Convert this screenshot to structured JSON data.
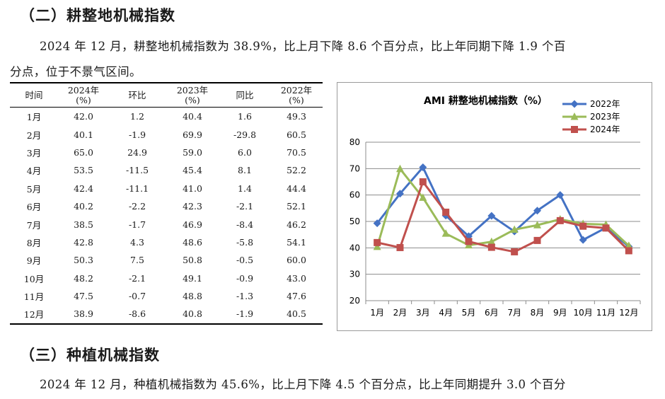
{
  "heading2": "（二）耕整地机械指数",
  "para1_line1": "2024 年 12 月，耕整地机械指数为 38.9%，比上月下降 8.6 个百分点，比上年同期下降 1.9 个百",
  "para1_line2": "分点，位于不景气区间。",
  "table": {
    "headers": [
      {
        "l1": "时间",
        "l2": ""
      },
      {
        "l1": "2024年",
        "l2": "(%)"
      },
      {
        "l1": "环比",
        "l2": ""
      },
      {
        "l1": "2023年",
        "l2": "(%)"
      },
      {
        "l1": "同比",
        "l2": ""
      },
      {
        "l1": "2022年",
        "l2": "(%)"
      }
    ],
    "rows": [
      [
        "1月",
        "42.0",
        "1.2",
        "40.4",
        "1.6",
        "49.3"
      ],
      [
        "2月",
        "40.1",
        "-1.9",
        "69.9",
        "-29.8",
        "60.5"
      ],
      [
        "3月",
        "65.0",
        "24.9",
        "59.0",
        "6.0",
        "70.5"
      ],
      [
        "4月",
        "53.5",
        "-11.5",
        "45.4",
        "8.1",
        "52.2"
      ],
      [
        "5月",
        "42.4",
        "-11.1",
        "41.0",
        "1.4",
        "44.4"
      ],
      [
        "6月",
        "40.2",
        "-2.2",
        "42.3",
        "-2.1",
        "52.1"
      ],
      [
        "7月",
        "38.5",
        "-1.7",
        "46.9",
        "-8.4",
        "46.2"
      ],
      [
        "8月",
        "42.8",
        "4.3",
        "48.6",
        "-5.8",
        "54.1"
      ],
      [
        "9月",
        "50.3",
        "7.5",
        "50.8",
        "-0.5",
        "60.0"
      ],
      [
        "10月",
        "48.2",
        "-2.1",
        "49.1",
        "-0.9",
        "43.0"
      ],
      [
        "11月",
        "47.5",
        "-0.7",
        "48.8",
        "-1.3",
        "47.6"
      ],
      [
        "12月",
        "38.9",
        "-8.6",
        "40.8",
        "-1.9",
        "40.5"
      ]
    ]
  },
  "chart_data": {
    "type": "line",
    "title": "AMI 耕整地机械指数（%）",
    "categories": [
      "1月",
      "2月",
      "3月",
      "4月",
      "5月",
      "6月",
      "7月",
      "8月",
      "9月",
      "10月",
      "11月",
      "12月"
    ],
    "ylim": [
      20,
      80
    ],
    "yticks": [
      "20",
      "30",
      "40",
      "50",
      "60",
      "70",
      "80"
    ],
    "grid": true,
    "legend_position": "top-right",
    "series": [
      {
        "name": "2022年",
        "color": "#4472c4",
        "marker": "diamond",
        "values": [
          49.3,
          60.5,
          70.5,
          52.2,
          44.4,
          52.1,
          46.2,
          54.1,
          60.0,
          43.0,
          47.6,
          40.5
        ]
      },
      {
        "name": "2023年",
        "color": "#9bbb59",
        "marker": "triangle",
        "values": [
          40.4,
          69.9,
          59.0,
          45.4,
          41.0,
          42.3,
          46.9,
          48.6,
          50.8,
          49.1,
          48.8,
          40.8
        ]
      },
      {
        "name": "2024年",
        "color": "#c0504d",
        "marker": "square",
        "values": [
          42.0,
          40.1,
          65.0,
          53.5,
          42.4,
          40.2,
          38.5,
          42.8,
          50.3,
          48.2,
          47.5,
          38.9
        ]
      }
    ]
  },
  "heading3": "（三）种植机械指数",
  "para2_line1": "2024 年 12 月，种植机械指数为 45.6%，比上月下降 4.5 个百分点，比上年同期提升 3.0 个百分"
}
